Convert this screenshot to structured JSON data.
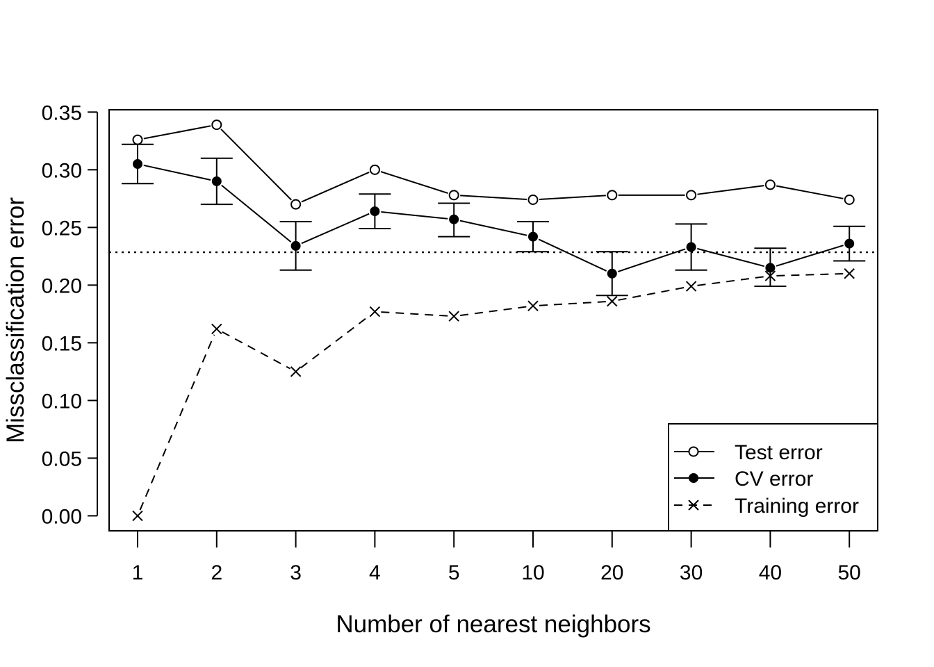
{
  "chart_data": {
    "type": "line",
    "xlabel": "Number of nearest neighbors",
    "ylabel": "Missclassification error",
    "categories": [
      "1",
      "2",
      "3",
      "4",
      "5",
      "10",
      "20",
      "30",
      "40",
      "50"
    ],
    "ylim": [
      -0.013,
      0.352
    ],
    "yticks": [
      "0.00",
      "0.05",
      "0.10",
      "0.15",
      "0.20",
      "0.25",
      "0.30",
      "0.35"
    ],
    "grid": false,
    "legend_position": "bottom-right",
    "reference_line": {
      "y": 0.2285,
      "style": "dotted"
    },
    "series": [
      {
        "name": "Test error",
        "marker": "open-circle",
        "line": "solid",
        "values": [
          0.326,
          0.339,
          0.27,
          0.3,
          0.278,
          0.274,
          0.278,
          0.278,
          0.287,
          0.274
        ]
      },
      {
        "name": "CV error",
        "marker": "filled-circle",
        "line": "solid",
        "values": [
          0.305,
          0.29,
          0.234,
          0.264,
          0.257,
          0.242,
          0.21,
          0.233,
          0.215,
          0.236
        ],
        "error_upper": [
          0.322,
          0.31,
          0.255,
          0.279,
          0.271,
          0.255,
          0.229,
          0.253,
          0.232,
          0.251
        ],
        "error_lower": [
          0.288,
          0.27,
          0.213,
          0.249,
          0.242,
          0.229,
          0.191,
          0.213,
          0.199,
          0.221
        ]
      },
      {
        "name": "Training error",
        "marker": "cross",
        "line": "dashed",
        "values": [
          0.0,
          0.162,
          0.125,
          0.177,
          0.173,
          0.182,
          0.186,
          0.199,
          0.208,
          0.21
        ]
      }
    ]
  }
}
